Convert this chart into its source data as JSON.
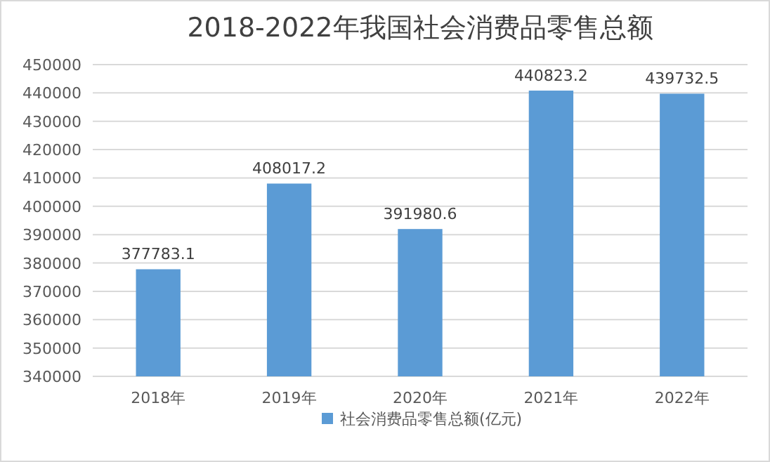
{
  "chart_data": {
    "type": "bar",
    "title": "2018-2022年我国社会消费品零售总额",
    "categories": [
      "2018年",
      "2019年",
      "2020年",
      "2021年",
      "2022年"
    ],
    "series": [
      {
        "name": "社会消费品零售总额(亿元)",
        "color": "#5b9bd5",
        "values": [
          377783.1,
          408017.2,
          391980.6,
          440823.2,
          439732.5
        ]
      }
    ],
    "ylim": [
      340000,
      450000
    ],
    "yticks": [
      340000,
      350000,
      360000,
      370000,
      380000,
      390000,
      400000,
      410000,
      420000,
      430000,
      440000,
      450000
    ],
    "grid": "y",
    "legend": "bottom",
    "data_labels": true
  }
}
